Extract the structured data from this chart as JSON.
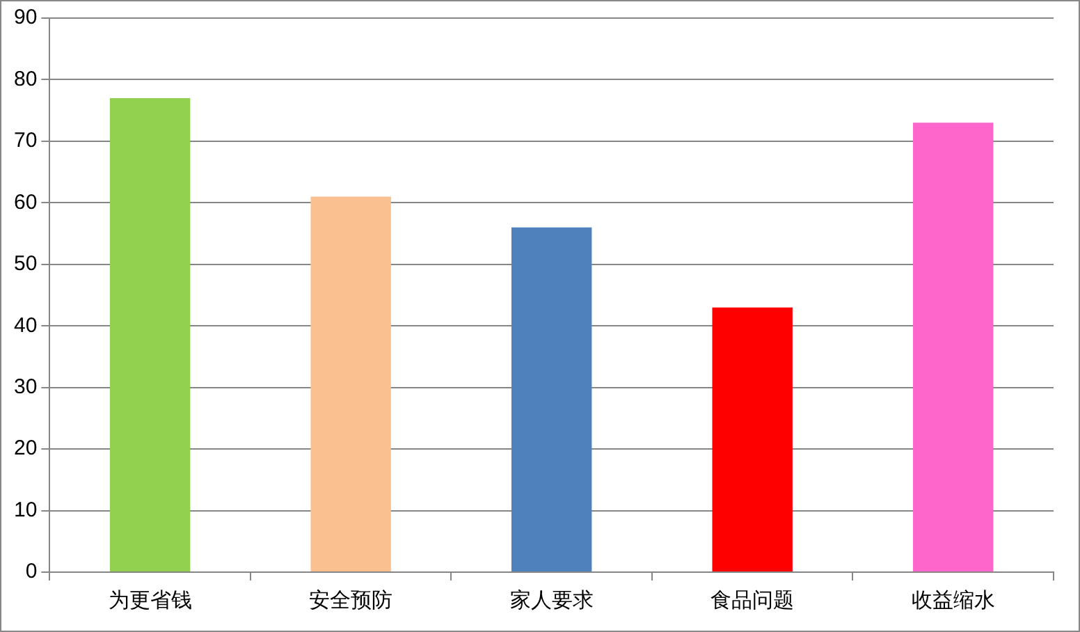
{
  "chart_data": {
    "type": "bar",
    "categories": [
      "为更省钱",
      "安全预防",
      "家人要求",
      "食品问题",
      "收益缩水"
    ],
    "values": [
      77,
      61,
      56,
      43,
      73
    ],
    "colors": [
      "#92d050",
      "#fac090",
      "#4f81bd",
      "#ff0000",
      "#ff66cc"
    ],
    "ylim": [
      0,
      90
    ],
    "yticks": [
      0,
      10,
      20,
      30,
      40,
      50,
      60,
      70,
      80,
      90
    ],
    "grid": "y",
    "legend": false
  }
}
